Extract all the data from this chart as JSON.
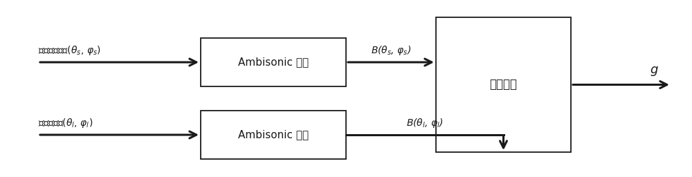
{
  "bg_color": "#ffffff",
  "box_edge_color": "#1a1a1a",
  "box_face_color": "#ffffff",
  "arrow_color": "#1a1a1a",
  "text_color": "#1a1a1a",
  "box1_label": "Ambisonic 编码",
  "box2_label": "Ambisonic 编码",
  "box3_label": "匹配投影",
  "top_input_label": "虚拟声源角度($\\theta_s$, $\\varphi_s$)",
  "bot_input_label": "扬声器角度($\\theta_l$, $\\varphi_l$)",
  "arrow_top_label": "B($\\theta_s$, $\\varphi_s$)",
  "arrow_bot_label": "B($\\theta_l$, $\\varphi_l$)",
  "output_label": "$g$",
  "figsize": [
    10.0,
    2.56
  ],
  "dpi": 100
}
